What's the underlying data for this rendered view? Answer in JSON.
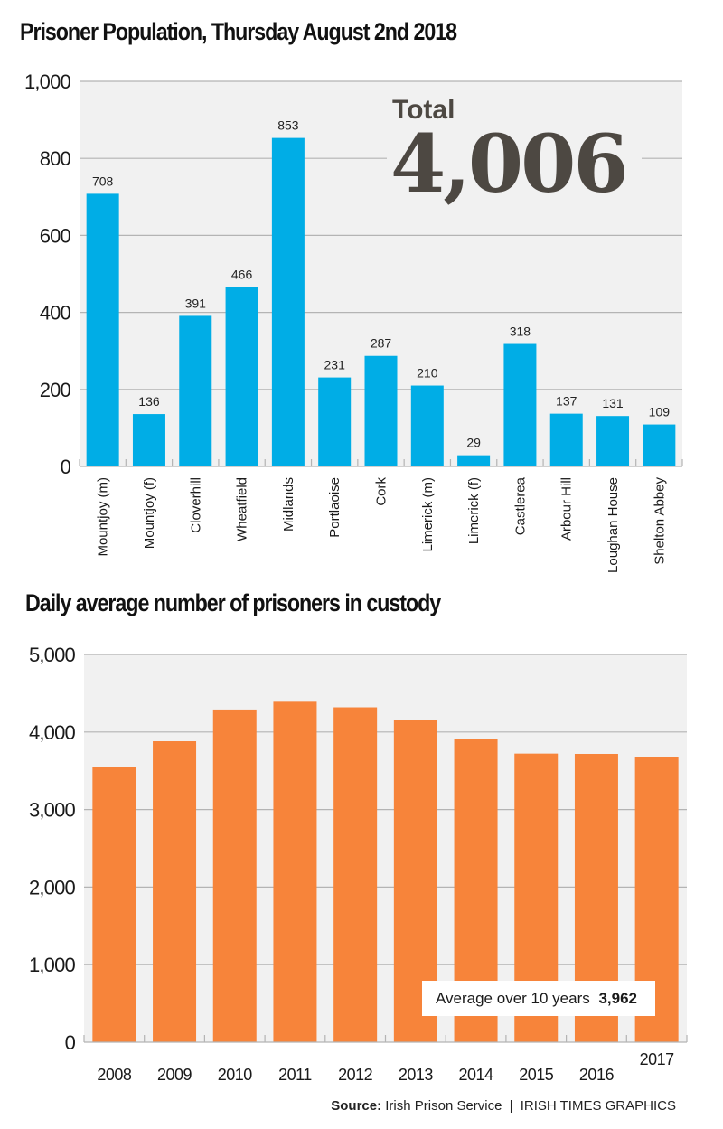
{
  "colors": {
    "bar_blue": "#00ade6",
    "bar_orange": "#f7843a",
    "plot_bg": "#f1f1f1",
    "gridline": "#b4b4b4",
    "total_text": "#4d4842"
  },
  "chart_data": [
    {
      "type": "bar",
      "title": "Prisoner Population, Thursday August 2nd 2018",
      "xlabel": "",
      "ylabel": "",
      "categories": [
        "Mountjoy (m)",
        "Mountjoy (f)",
        "Cloverhill",
        "Wheatfield",
        "Midlands",
        "Portlaoise",
        "Cork",
        "Limerick (m)",
        "Limerick (f)",
        "Castlerea",
        "Arbour Hill",
        "Loughan House",
        "Shelton Abbey"
      ],
      "values": [
        708,
        136,
        391,
        466,
        853,
        231,
        287,
        210,
        29,
        318,
        137,
        131,
        109
      ],
      "value_labels": [
        "708",
        "136",
        "391",
        "466",
        "853",
        "231",
        "287",
        "210",
        "29",
        "318",
        "137",
        "131",
        "109"
      ],
      "ylim": [
        0,
        1000
      ],
      "yticks": [
        0,
        200,
        400,
        600,
        800,
        1000
      ],
      "ytick_labels": [
        "0",
        "200",
        "400",
        "600",
        "800",
        "1,000"
      ],
      "grid": true,
      "annotation": {
        "label": "Total",
        "value": "4,006"
      }
    },
    {
      "type": "bar",
      "title": "Daily average number of prisoners in custody",
      "xlabel": "",
      "ylabel": "",
      "categories": [
        "2008",
        "2009",
        "2010",
        "2011",
        "2012",
        "2013",
        "2014",
        "2015",
        "2016",
        "2017"
      ],
      "values": [
        3544,
        3881,
        4290,
        4390,
        4318,
        4158,
        3915,
        3722,
        3718,
        3680
      ],
      "ylim": [
        0,
        5000
      ],
      "yticks": [
        0,
        1000,
        2000,
        3000,
        4000,
        5000
      ],
      "ytick_labels": [
        "0",
        "1,000",
        "2,000",
        "3,000",
        "4,000",
        "5,000"
      ],
      "grid": true,
      "annotation": {
        "label": "Average over 10 years",
        "value": "3,962"
      }
    }
  ],
  "footer": {
    "source_label": "Source:",
    "source_text": "Irish Prison Service",
    "separator": "|",
    "credit": "IRISH TIMES GRAPHICS"
  }
}
